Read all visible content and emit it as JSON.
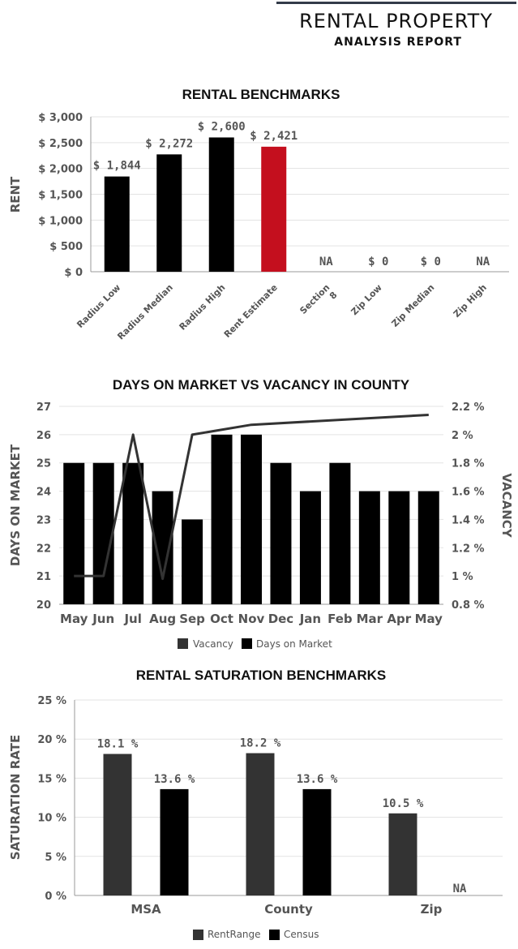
{
  "header": {
    "title": "RENTAL PROPERTY",
    "subtitle": "ANALYSIS REPORT"
  },
  "chart_data": [
    {
      "type": "bar",
      "title": "RENTAL BENCHMARKS",
      "ylabel": "RENT",
      "ylim": [
        0,
        3000
      ],
      "yticks": [
        "$ 0",
        "$ 500",
        "$ 1,000",
        "$ 1,500",
        "$ 2,000",
        "$ 2,500",
        "$ 3,000"
      ],
      "categories": [
        "Radius Low",
        "Radius Median",
        "Radius High",
        "Rent Estimate",
        "Section 8",
        "Zip Low",
        "Zip Median",
        "Zip High"
      ],
      "values": [
        1844,
        2272,
        2600,
        2421,
        null,
        0,
        0,
        null
      ],
      "labels": [
        "$ 1,844",
        "$ 2,272",
        "$ 2,600",
        "$ 2,421",
        "NA",
        "$ 0",
        "$ 0",
        "NA"
      ],
      "colors": [
        "#000000",
        "#000000",
        "#000000",
        "#c40f1e",
        "#000000",
        "#000000",
        "#000000",
        "#000000"
      ],
      "grid": true
    },
    {
      "type": "bar+line",
      "title": "DAYS ON MARKET VS VACANCY IN COUNTY",
      "ylabel": "DAYS ON MARKET",
      "y2label": "VACANCY",
      "ylim": [
        20,
        27
      ],
      "y2lim": [
        0.8,
        2.2
      ],
      "yticks": [
        "20",
        "21",
        "22",
        "23",
        "24",
        "25",
        "26",
        "27"
      ],
      "y2ticks": [
        "0.8 %",
        "1 %",
        "1.2 %",
        "1.4 %",
        "1.6 %",
        "1.8 %",
        "2 %",
        "2.2 %"
      ],
      "categories": [
        "May",
        "Jun",
        "Jul",
        "Aug",
        "Sep",
        "Oct",
        "Nov",
        "Dec",
        "Jan",
        "Feb",
        "Mar",
        "Apr",
        "May"
      ],
      "series": [
        {
          "name": "Days on Market",
          "kind": "bar",
          "color": "#000000",
          "values": [
            25,
            25,
            25,
            24,
            23,
            26,
            26,
            25,
            24,
            25,
            24,
            24,
            24
          ]
        },
        {
          "name": "Vacancy",
          "kind": "line",
          "color": "#333333",
          "values": [
            1.0,
            1.0,
            2.0,
            0.98,
            2.0,
            null,
            2.07,
            null,
            null,
            null,
            null,
            null,
            2.14
          ]
        }
      ],
      "legend": "bottom",
      "grid": true
    },
    {
      "type": "bar",
      "title": "RENTAL SATURATION BENCHMARKS",
      "ylabel": "SATURATION RATE",
      "ylim": [
        0,
        25
      ],
      "yticks": [
        "0 %",
        "5 %",
        "10 %",
        "15 %",
        "20 %",
        "25 %"
      ],
      "categories": [
        "MSA",
        "County",
        "Zip"
      ],
      "series": [
        {
          "name": "RentRange",
          "color": "#333333",
          "values": [
            18.1,
            18.2,
            10.5
          ],
          "labels": [
            "18.1 %",
            "18.2 %",
            "10.5 %"
          ]
        },
        {
          "name": "Census",
          "color": "#000000",
          "values": [
            13.6,
            13.6,
            null
          ],
          "labels": [
            "13.6 %",
            "13.6 %",
            "NA"
          ]
        }
      ],
      "legend": "bottom",
      "grid": true
    }
  ]
}
